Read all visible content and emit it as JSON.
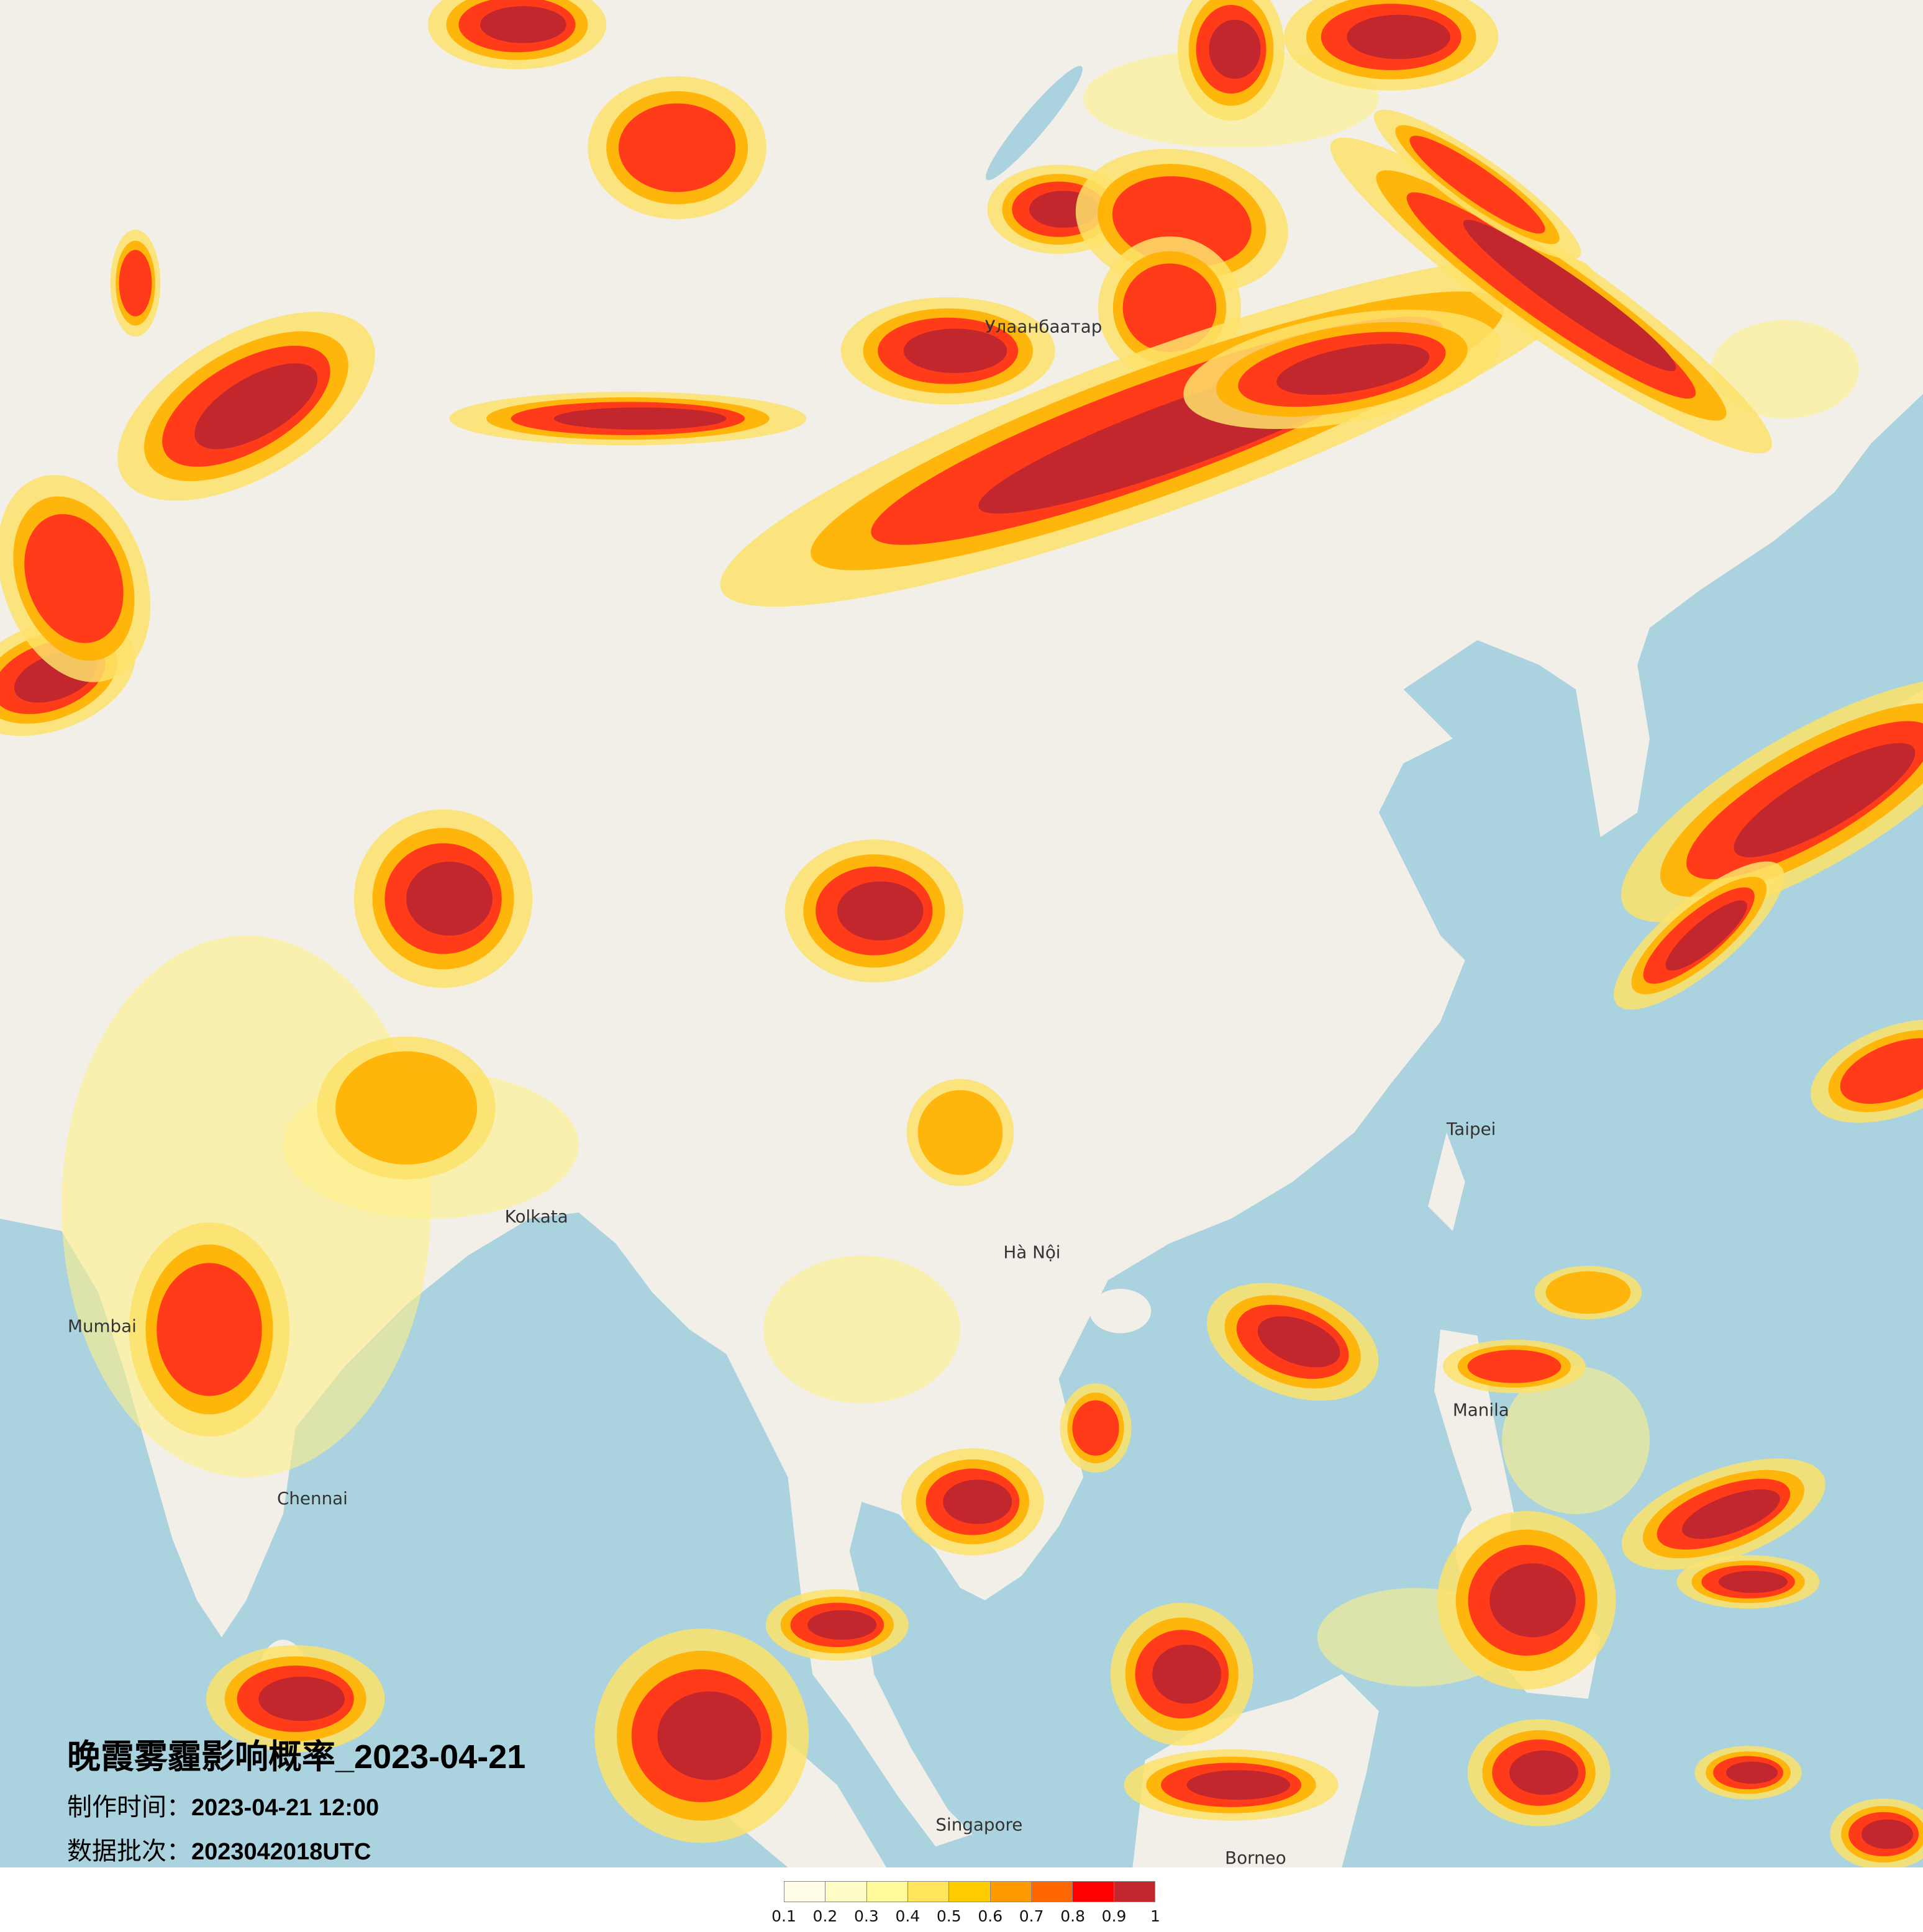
{
  "title": "晚霞雾霾影响概率_2023-04-21",
  "production_time": {
    "label": "制作时间：",
    "value": "2023-04-21 12:00"
  },
  "data_batch": {
    "label": "数据批次：",
    "value": "2023042018UTC"
  },
  "legend": {
    "colors": [
      "#fffde6",
      "#fffbc4",
      "#fff99a",
      "#ffe45c",
      "#ffcc00",
      "#ff9900",
      "#ff6600",
      "#ff0000",
      "#c1272d"
    ],
    "labels": [
      "0.1",
      "0.2",
      "0.3",
      "0.4",
      "0.5",
      "0.6",
      "0.7",
      "0.8",
      "0.9",
      "1"
    ]
  },
  "map": {
    "land_color": "#f2efe9",
    "sea_color": "#aad3df",
    "places": [
      "Улаанбаатар",
      "Kolkata",
      "Hà Nội",
      "Singapore",
      "Borneo",
      "Chennai",
      "Mumbai",
      "Taipei",
      "Manila"
    ]
  }
}
